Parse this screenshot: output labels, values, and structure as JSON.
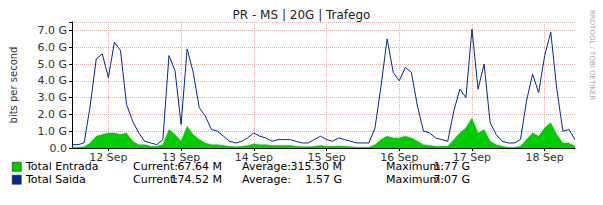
{
  "chart_data": {
    "type": "line",
    "title": "PR - MS | 20G | Trafego",
    "y_label": "bits per second",
    "watermark": "RRDTOOL / TOBI OETIKER",
    "grid": true,
    "categories": [
      null,
      null,
      null,
      null,
      null,
      null,
      "12 Sep",
      null,
      null,
      null,
      null,
      null,
      null,
      null,
      null,
      null,
      null,
      null,
      "13 Sep",
      null,
      null,
      null,
      null,
      null,
      null,
      null,
      null,
      null,
      null,
      null,
      "14 Sep",
      null,
      null,
      null,
      null,
      null,
      null,
      null,
      null,
      null,
      null,
      null,
      "15 Sep",
      null,
      null,
      null,
      null,
      null,
      null,
      null,
      null,
      null,
      null,
      null,
      "16 Sep",
      null,
      null,
      null,
      null,
      null,
      null,
      null,
      null,
      null,
      null,
      null,
      "17 Sep",
      null,
      null,
      null,
      null,
      null,
      null,
      null,
      null,
      null,
      null,
      null,
      "18 Sep",
      null,
      null,
      null,
      null,
      null
    ],
    "ylim": [
      0,
      7.5
    ],
    "yticks": [
      {
        "value": 0,
        "label": "0.0"
      },
      {
        "value": 1,
        "label": "1.0 G"
      },
      {
        "value": 2,
        "label": "2.0 G"
      },
      {
        "value": 3,
        "label": "3.0 G"
      },
      {
        "value": 4,
        "label": "4.0 G"
      },
      {
        "value": 5,
        "label": "5.0 G"
      },
      {
        "value": 6,
        "label": "6.0 G"
      },
      {
        "value": 7,
        "label": "7.0 G"
      }
    ],
    "series": [
      {
        "name": "Total Entrada",
        "type": "area",
        "color": "#00cc00",
        "values": [
          0.05,
          0.05,
          0.08,
          0.3,
          0.7,
          0.8,
          0.9,
          0.9,
          0.8,
          0.9,
          0.4,
          0.2,
          0.2,
          0.1,
          0.1,
          0.2,
          1.1,
          0.8,
          0.4,
          1.3,
          0.8,
          0.5,
          0.3,
          0.2,
          0.2,
          0.15,
          0.1,
          0.08,
          0.1,
          0.15,
          0.25,
          0.2,
          0.2,
          0.15,
          0.15,
          0.15,
          0.15,
          0.1,
          0.08,
          0.08,
          0.1,
          0.15,
          0.1,
          0.1,
          0.12,
          0.1,
          0.08,
          0.05,
          0.05,
          0.05,
          0.2,
          0.5,
          0.7,
          0.6,
          0.6,
          0.7,
          0.6,
          0.4,
          0.2,
          0.15,
          0.1,
          0.1,
          0.1,
          0.5,
          0.9,
          1.2,
          1.77,
          0.9,
          1.1,
          0.4,
          0.2,
          0.1,
          0.05,
          0.05,
          0.1,
          0.5,
          0.9,
          0.7,
          1.2,
          1.5,
          0.8,
          0.3,
          0.3,
          0.1
        ],
        "stats": [
          {
            "label": "Current:",
            "value": "67.64 M"
          },
          {
            "label": "Average:",
            "value": "315.30 M"
          },
          {
            "label": "Maximum:",
            "value": "1.77 G"
          }
        ]
      },
      {
        "name": "Total Saida",
        "type": "line",
        "color": "#002a97",
        "values": [
          0.2,
          0.2,
          0.3,
          2.5,
          5.3,
          5.6,
          4.2,
          6.3,
          5.8,
          2.6,
          1.6,
          0.9,
          0.4,
          0.3,
          0.2,
          0.5,
          5.5,
          4.6,
          1.4,
          5.9,
          4.5,
          2.4,
          1.9,
          1.1,
          1.0,
          0.7,
          0.4,
          0.3,
          0.4,
          0.6,
          0.9,
          0.7,
          0.6,
          0.4,
          0.5,
          0.5,
          0.5,
          0.4,
          0.3,
          0.3,
          0.5,
          0.7,
          0.5,
          0.4,
          0.6,
          0.5,
          0.4,
          0.3,
          0.3,
          0.3,
          1.2,
          3.7,
          6.5,
          4.5,
          4.0,
          4.8,
          4.5,
          2.5,
          1.0,
          0.9,
          0.6,
          0.5,
          0.4,
          2.2,
          3.5,
          3.0,
          7.07,
          3.5,
          5.0,
          1.5,
          0.8,
          0.4,
          0.3,
          0.3,
          0.5,
          2.8,
          4.4,
          3.3,
          5.5,
          6.9,
          3.5,
          1.0,
          1.1,
          0.5
        ],
        "stats": [
          {
            "label": "Current:",
            "value": "174.52 M"
          },
          {
            "label": "Average:",
            "value": "1.57 G"
          },
          {
            "label": "Maximum:",
            "value": "7.07 G"
          }
        ]
      }
    ]
  }
}
